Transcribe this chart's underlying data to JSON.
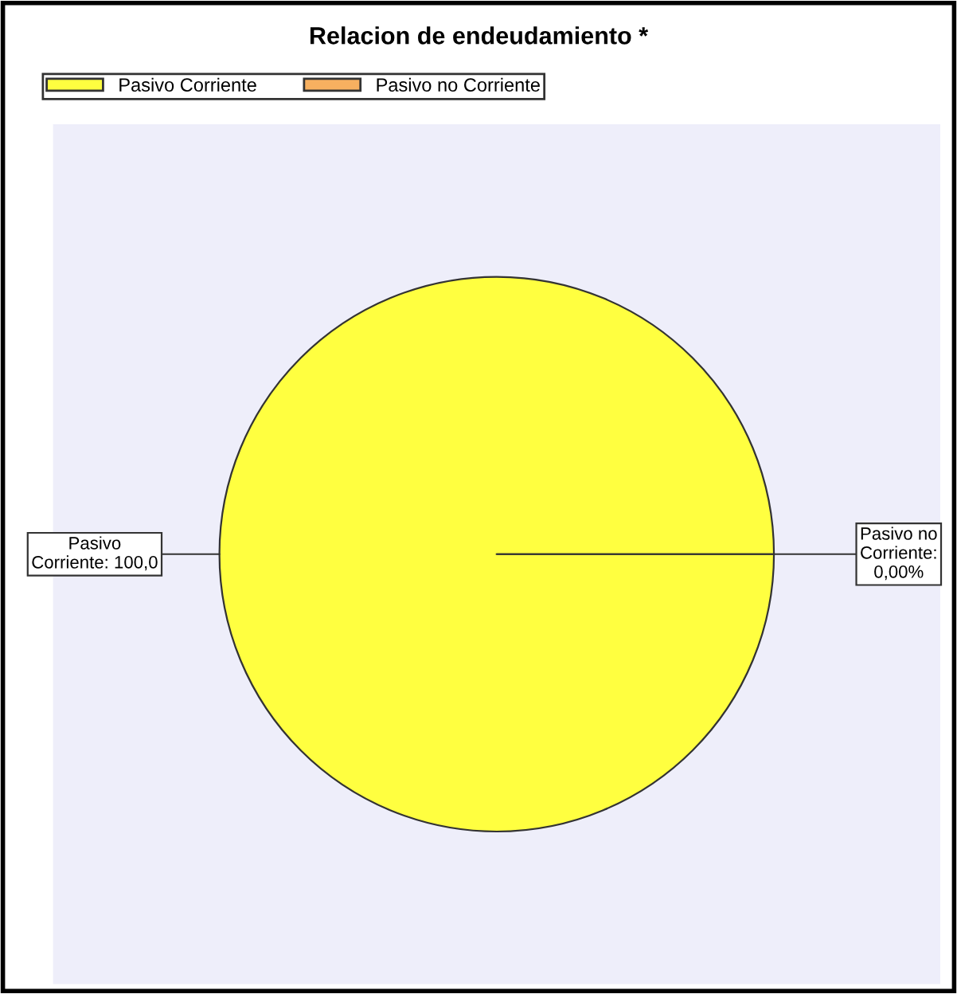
{
  "chart_data": {
    "type": "pie",
    "title": "Relacion de endeudamiento *",
    "categories": [
      "Pasivo Corriente",
      "Pasivo no Corriente"
    ],
    "values": [
      100,
      0
    ],
    "colors": [
      "#ffff40",
      "#f7b060"
    ],
    "value_labels": [
      "Pasivo Corriente: 100,0",
      "Pasivo no Corriente: 0,00%"
    ],
    "legend": "top left"
  }
}
